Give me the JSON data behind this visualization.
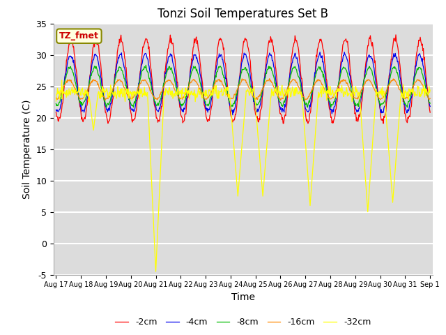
{
  "title": "Tonzi Soil Temperatures Set B",
  "xlabel": "Time",
  "ylabel": "Soil Temperature (C)",
  "ylim": [
    -5,
    35
  ],
  "annotation": "TZ_fmet",
  "background_color": "#dcdcdc",
  "grid_color": "white",
  "line_colors": [
    "#ff0000",
    "#0000ee",
    "#00bb00",
    "#ff8800",
    "#ffff00"
  ],
  "line_labels": [
    "-2cm",
    "-4cm",
    "-8cm",
    "-16cm",
    "-32cm"
  ],
  "x_tick_labels": [
    "Aug 17",
    "Aug 18",
    "Aug 19",
    "Aug 20",
    "Aug 21",
    "Aug 22",
    "Aug 23",
    "Aug 24",
    "Aug 25",
    "Aug 26",
    "Aug 27",
    "Aug 28",
    "Aug 29",
    "Aug 30",
    "Aug 31",
    "Sep 1"
  ],
  "yticks": [
    -5,
    0,
    5,
    10,
    15,
    20,
    25,
    30,
    35
  ]
}
